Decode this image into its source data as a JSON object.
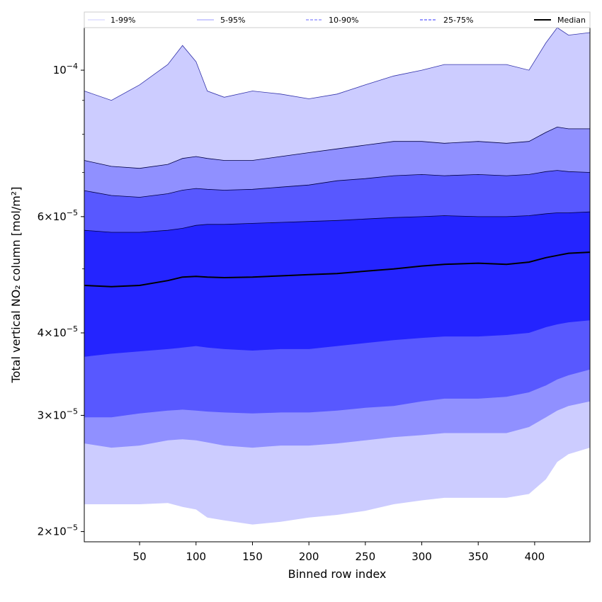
{
  "chart_data": {
    "type": "area",
    "xlabel": "Binned row index",
    "ylabel": "Total vertical NO₂ column [mol/m²]",
    "xlim": [
      1,
      449
    ],
    "ylim_log": [
      1.93e-05,
      0.000116
    ],
    "yscale": "log",
    "x_ticks": [
      50,
      100,
      150,
      200,
      250,
      300,
      350,
      400
    ],
    "y_ticks": [
      {
        "value": 2e-05,
        "mantissa": "2",
        "exponent": "−5"
      },
      {
        "value": 3e-05,
        "mantissa": "3",
        "exponent": "−5"
      },
      {
        "value": 4e-05,
        "mantissa": "4",
        "exponent": "−5"
      },
      {
        "value": 6e-05,
        "mantissa": "6",
        "exponent": "−5"
      },
      {
        "value": 0.0001,
        "mantissa": "",
        "exponent": "−4"
      }
    ],
    "legend_placement": "top",
    "legend": [
      {
        "label": "1-99%",
        "color": "#ccccff",
        "style": "solid"
      },
      {
        "label": "5-95%",
        "color": "#9999ff",
        "style": "solid"
      },
      {
        "label": "10-90%",
        "color": "#6666ff",
        "style": "dashed"
      },
      {
        "label": "25-75%",
        "color": "#3333ff",
        "style": "dashed"
      },
      {
        "label": "Median",
        "color": "#000000",
        "style": "solid"
      }
    ],
    "x": [
      1,
      25,
      50,
      75,
      88,
      100,
      110,
      125,
      150,
      175,
      200,
      225,
      250,
      275,
      300,
      320,
      350,
      375,
      395,
      410,
      420,
      430,
      449
    ],
    "bands": [
      {
        "name": "1-99%",
        "color": "#ccccff",
        "edge": "#3333aa",
        "upper": [
          9.3e-05,
          9e-05,
          9.5e-05,
          0.000102,
          0.000109,
          0.000103,
          9.3e-05,
          9.1e-05,
          9.3e-05,
          9.2e-05,
          9.05e-05,
          9.2e-05,
          9.5e-05,
          9.8e-05,
          0.0001,
          0.000102,
          0.000102,
          0.000102,
          0.0001,
          0.00011,
          0.000116,
          0.000113,
          0.000114
        ],
        "lower": [
          2.2e-05,
          2.2e-05,
          2.2e-05,
          2.21e-05,
          2.18e-05,
          2.16e-05,
          2.1e-05,
          2.08e-05,
          2.05e-05,
          2.07e-05,
          2.1e-05,
          2.12e-05,
          2.15e-05,
          2.2e-05,
          2.23e-05,
          2.25e-05,
          2.25e-05,
          2.25e-05,
          2.28e-05,
          2.4e-05,
          2.55e-05,
          2.62e-05,
          2.68e-05
        ]
      },
      {
        "name": "5-95%",
        "color": "#9090ff",
        "edge": "#000044",
        "upper": [
          7.3e-05,
          7.15e-05,
          7.1e-05,
          7.2e-05,
          7.35e-05,
          7.4e-05,
          7.35e-05,
          7.3e-05,
          7.3e-05,
          7.4e-05,
          7.5e-05,
          7.6e-05,
          7.7e-05,
          7.8e-05,
          7.8e-05,
          7.75e-05,
          7.8e-05,
          7.75e-05,
          7.8e-05,
          8.05e-05,
          8.2e-05,
          8.15e-05,
          8.15e-05
        ],
        "lower": [
          2.72e-05,
          2.68e-05,
          2.7e-05,
          2.75e-05,
          2.76e-05,
          2.75e-05,
          2.73e-05,
          2.7e-05,
          2.68e-05,
          2.7e-05,
          2.7e-05,
          2.72e-05,
          2.75e-05,
          2.78e-05,
          2.8e-05,
          2.82e-05,
          2.82e-05,
          2.82e-05,
          2.88e-05,
          2.98e-05,
          3.05e-05,
          3.1e-05,
          3.15e-05
        ]
      },
      {
        "name": "10-90%",
        "color": "#5858ff",
        "edge": "#000044",
        "upper": [
          6.57e-05,
          6.46e-05,
          6.42e-05,
          6.5e-05,
          6.58e-05,
          6.62e-05,
          6.6e-05,
          6.58e-05,
          6.6e-05,
          6.65e-05,
          6.7e-05,
          6.8e-05,
          6.85e-05,
          6.92e-05,
          6.95e-05,
          6.92e-05,
          6.95e-05,
          6.92e-05,
          6.95e-05,
          7.02e-05,
          7.05e-05,
          7.02e-05,
          7e-05
        ],
        "lower": [
          2.98e-05,
          2.98e-05,
          3.02e-05,
          3.05e-05,
          3.06e-05,
          3.05e-05,
          3.04e-05,
          3.03e-05,
          3.02e-05,
          3.03e-05,
          3.03e-05,
          3.05e-05,
          3.08e-05,
          3.1e-05,
          3.15e-05,
          3.18e-05,
          3.18e-05,
          3.2e-05,
          3.25e-05,
          3.33e-05,
          3.4e-05,
          3.45e-05,
          3.52e-05
        ]
      },
      {
        "name": "25-75%",
        "color": "#2424ff",
        "edge": "#000044",
        "upper": [
          5.72e-05,
          5.68e-05,
          5.68e-05,
          5.72e-05,
          5.76e-05,
          5.82e-05,
          5.84e-05,
          5.84e-05,
          5.86e-05,
          5.88e-05,
          5.9e-05,
          5.92e-05,
          5.95e-05,
          5.98e-05,
          6e-05,
          6.02e-05,
          6e-05,
          6e-05,
          6.02e-05,
          6.06e-05,
          6.08e-05,
          6.08e-05,
          6.1e-05
        ],
        "lower": [
          3.68e-05,
          3.72e-05,
          3.75e-05,
          3.78e-05,
          3.8e-05,
          3.82e-05,
          3.8e-05,
          3.78e-05,
          3.76e-05,
          3.78e-05,
          3.78e-05,
          3.82e-05,
          3.86e-05,
          3.9e-05,
          3.93e-05,
          3.95e-05,
          3.95e-05,
          3.97e-05,
          4e-05,
          4.08e-05,
          4.12e-05,
          4.15e-05,
          4.18e-05
        ]
      }
    ],
    "median": {
      "name": "Median",
      "color": "#000000",
      "values": [
        4.72e-05,
        4.7e-05,
        4.72e-05,
        4.8e-05,
        4.86e-05,
        4.87e-05,
        4.86e-05,
        4.85e-05,
        4.86e-05,
        4.88e-05,
        4.9e-05,
        4.92e-05,
        4.96e-05,
        5e-05,
        5.05e-05,
        5.08e-05,
        5.1e-05,
        5.08e-05,
        5.12e-05,
        5.2e-05,
        5.24e-05,
        5.28e-05,
        5.3e-05
      ]
    }
  }
}
